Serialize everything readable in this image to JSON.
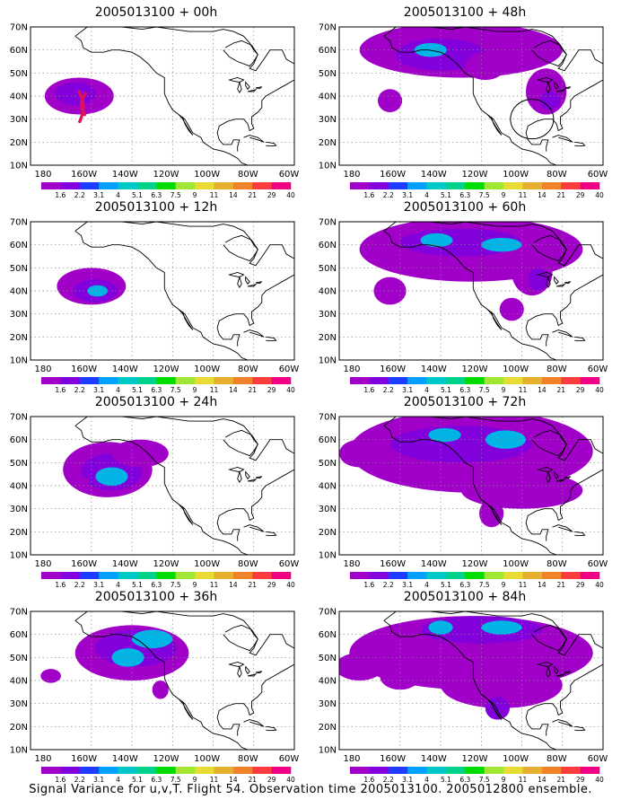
{
  "panels": [
    {
      "title": "2005013100 + 00h",
      "lead": 0
    },
    {
      "title": "2005013100 + 48h",
      "lead": 48
    },
    {
      "title": "2005013100 + 12h",
      "lead": 12
    },
    {
      "title": "2005013100 + 60h",
      "lead": 60
    },
    {
      "title": "2005013100 + 24h",
      "lead": 24
    },
    {
      "title": "2005013100 + 72h",
      "lead": 72
    },
    {
      "title": "2005013100 + 36h",
      "lead": 36
    },
    {
      "title": "2005013100 + 84h",
      "lead": 84
    }
  ],
  "lat_labels": [
    "70N",
    "60N",
    "50N",
    "40N",
    "30N",
    "20N",
    "10N"
  ],
  "lon_labels": [
    "180",
    "160W",
    "140W",
    "120W",
    "100W",
    "80W",
    "60W"
  ],
  "colorbar": {
    "labels": [
      "1.6",
      "2.2",
      "3.1",
      "4",
      "5.1",
      "6.3",
      "7.5",
      "9",
      "11",
      "14",
      "21",
      "29",
      "40"
    ],
    "colors": [
      "#a000c8",
      "#8200dc",
      "#1e3cff",
      "#00a0ff",
      "#00c8c8",
      "#00d28c",
      "#00dc00",
      "#a0e632",
      "#e6dc32",
      "#e6af2d",
      "#f08228",
      "#fa3c3c",
      "#f00082"
    ]
  },
  "caption": "Signal Variance for u,v,T. Flight 54. Observation time 2005013100. 2005012800 ensemble."
}
